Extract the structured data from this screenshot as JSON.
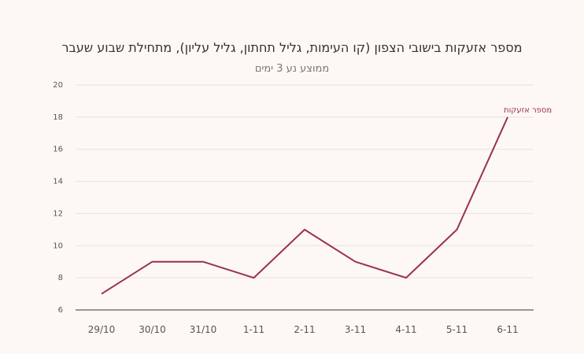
{
  "chart_data": {
    "type": "line",
    "title": "מספר אזעקות בישובי הצפון (קו העימות, גליל תחתון, גליל עליון), מתחילת שבוע שעבר",
    "subtitle": "ממוצע נע 3 ימים",
    "categories": [
      "29/10",
      "30/10",
      "31/10",
      "1-11",
      "2-11",
      "3-11",
      "4-11",
      "5-11",
      "6-11"
    ],
    "series": [
      {
        "name": "מספר אזעקות",
        "values": [
          7,
          9,
          9,
          8,
          11,
          9,
          8,
          11,
          18
        ],
        "color": "#9b3050"
      }
    ],
    "ylim": [
      6,
      20
    ],
    "yticks": [
      6,
      8,
      10,
      12,
      14,
      16,
      18,
      20
    ],
    "grid": true,
    "legend": "label at end of line"
  }
}
